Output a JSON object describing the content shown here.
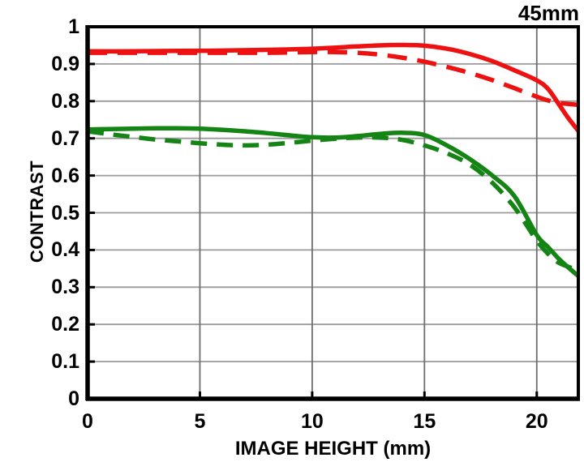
{
  "chart_data": {
    "type": "line",
    "title": "45mm",
    "xlabel": "IMAGE HEIGHT (mm)",
    "ylabel": "CONTRAST",
    "xlim": [
      0,
      21.85
    ],
    "ylim": [
      0,
      1
    ],
    "grid": true,
    "x_ticks": [
      0,
      5,
      10,
      15,
      20
    ],
    "x_tick_labels": [
      "0",
      "5",
      "10",
      "15",
      "20"
    ],
    "y_ticks": [
      1,
      0.9,
      0.8,
      0.7,
      0.6,
      0.5,
      0.4,
      0.3,
      0.2,
      0.1,
      0
    ],
    "y_tick_labels": [
      "1",
      "0.9",
      "0.8",
      "0.7",
      "0.6",
      "0.5",
      "0.4",
      "0.3",
      "0.2",
      "0.1",
      "0"
    ],
    "colors": {
      "red": "#ee1111",
      "green": "#148514",
      "grid_h": "#9a9a9a",
      "grid_v": "#6e6e6e",
      "axis": "#000000"
    },
    "legend_position": "none",
    "series": [
      {
        "name": "red-solid",
        "color": "#ee1111",
        "style": "solid",
        "points": [
          [
            0,
            0.934
          ],
          [
            2,
            0.934
          ],
          [
            4,
            0.935
          ],
          [
            6,
            0.936
          ],
          [
            8,
            0.938
          ],
          [
            10,
            0.941
          ],
          [
            12,
            0.947
          ],
          [
            13,
            0.95
          ],
          [
            14,
            0.951
          ],
          [
            15,
            0.949
          ],
          [
            16,
            0.941
          ],
          [
            17,
            0.927
          ],
          [
            18,
            0.908
          ],
          [
            19,
            0.883
          ],
          [
            20,
            0.856
          ],
          [
            20.5,
            0.833
          ],
          [
            21,
            0.79
          ],
          [
            21.4,
            0.755
          ],
          [
            21.85,
            0.72
          ]
        ]
      },
      {
        "name": "red-dashed",
        "color": "#ee1111",
        "style": "dashed",
        "points": [
          [
            0,
            0.93
          ],
          [
            2,
            0.93
          ],
          [
            4,
            0.93
          ],
          [
            6,
            0.93
          ],
          [
            8,
            0.93
          ],
          [
            10,
            0.932
          ],
          [
            11,
            0.932
          ],
          [
            12,
            0.93
          ],
          [
            13,
            0.925
          ],
          [
            14,
            0.917
          ],
          [
            15,
            0.906
          ],
          [
            16,
            0.892
          ],
          [
            17,
            0.876
          ],
          [
            18,
            0.857
          ],
          [
            19,
            0.835
          ],
          [
            20,
            0.812
          ],
          [
            20.5,
            0.802
          ],
          [
            21,
            0.795
          ],
          [
            21.85,
            0.79
          ]
        ]
      },
      {
        "name": "green-solid",
        "color": "#148514",
        "style": "solid",
        "points": [
          [
            0,
            0.724
          ],
          [
            1,
            0.725
          ],
          [
            2,
            0.726
          ],
          [
            3,
            0.727
          ],
          [
            4,
            0.727
          ],
          [
            5,
            0.726
          ],
          [
            6,
            0.723
          ],
          [
            7,
            0.719
          ],
          [
            8,
            0.714
          ],
          [
            9,
            0.708
          ],
          [
            10,
            0.703
          ],
          [
            11,
            0.702
          ],
          [
            12,
            0.706
          ],
          [
            13,
            0.712
          ],
          [
            14,
            0.715
          ],
          [
            15,
            0.709
          ],
          [
            16,
            0.681
          ],
          [
            17,
            0.645
          ],
          [
            18,
            0.601
          ],
          [
            19,
            0.545
          ],
          [
            20,
            0.44
          ],
          [
            20.5,
            0.408
          ],
          [
            21,
            0.375
          ],
          [
            21.5,
            0.348
          ],
          [
            21.85,
            0.33
          ]
        ]
      },
      {
        "name": "green-dashed",
        "color": "#148514",
        "style": "dashed",
        "points": [
          [
            0,
            0.719
          ],
          [
            1,
            0.711
          ],
          [
            2,
            0.704
          ],
          [
            3,
            0.697
          ],
          [
            4,
            0.692
          ],
          [
            5,
            0.687
          ],
          [
            6,
            0.683
          ],
          [
            7,
            0.681
          ],
          [
            8,
            0.683
          ],
          [
            9,
            0.688
          ],
          [
            10,
            0.694
          ],
          [
            11,
            0.699
          ],
          [
            12,
            0.702
          ],
          [
            13,
            0.702
          ],
          [
            14,
            0.696
          ],
          [
            15,
            0.681
          ],
          [
            16,
            0.66
          ],
          [
            17,
            0.63
          ],
          [
            18,
            0.582
          ],
          [
            19,
            0.515
          ],
          [
            20,
            0.425
          ],
          [
            20.5,
            0.39
          ],
          [
            21,
            0.365
          ],
          [
            21.85,
            0.345
          ]
        ]
      }
    ]
  }
}
